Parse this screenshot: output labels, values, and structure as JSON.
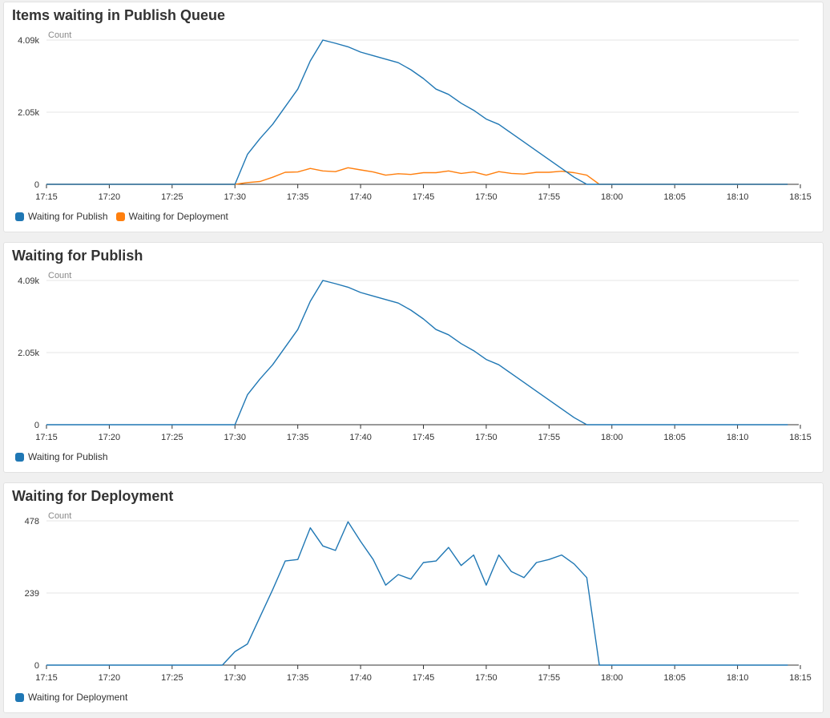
{
  "chart_data": [
    {
      "type": "line",
      "title": "Items waiting in Publish Queue",
      "ylabel": "Count",
      "x": [
        "17:15",
        "17:30",
        "17:31",
        "17:32",
        "17:33",
        "17:34",
        "17:35",
        "17:36",
        "17:37",
        "17:38",
        "17:39",
        "17:40",
        "17:41",
        "17:42",
        "17:43",
        "17:44",
        "17:45",
        "17:46",
        "17:47",
        "17:48",
        "17:49",
        "17:50",
        "17:51",
        "17:52",
        "17:53",
        "17:54",
        "17:55",
        "17:56",
        "17:57",
        "17:58",
        "17:59",
        "18:00",
        "18:14"
      ],
      "x_ticks": [
        "17:15",
        "17:20",
        "17:25",
        "17:30",
        "17:35",
        "17:40",
        "17:45",
        "17:50",
        "17:55",
        "18:00",
        "18:05",
        "18:10",
        "18:15"
      ],
      "y_ticks": [
        "0",
        "2.05k",
        "4.09k"
      ],
      "ylim": [
        0,
        4090
      ],
      "grid": true,
      "legend_position": "bottom-left",
      "series": [
        {
          "name": "Waiting for Publish",
          "color": "#1f77b4",
          "values": [
            0,
            0,
            850,
            1300,
            1700,
            2200,
            2700,
            3500,
            4090,
            4000,
            3900,
            3750,
            3650,
            3550,
            3450,
            3250,
            3000,
            2700,
            2550,
            2300,
            2100,
            1850,
            1700,
            1450,
            1200,
            950,
            700,
            450,
            200,
            0,
            0,
            0,
            0
          ]
        },
        {
          "name": "Waiting for Deployment",
          "color": "#ff7f0e",
          "values": [
            0,
            0,
            50,
            80,
            200,
            340,
            350,
            450,
            380,
            360,
            470,
            410,
            350,
            260,
            300,
            280,
            330,
            330,
            380,
            310,
            350,
            260,
            360,
            310,
            290,
            340,
            340,
            370,
            330,
            260,
            0,
            0,
            0
          ]
        }
      ]
    },
    {
      "type": "line",
      "title": "Waiting for Publish",
      "ylabel": "Count",
      "x": [
        "17:15",
        "17:30",
        "17:31",
        "17:32",
        "17:33",
        "17:34",
        "17:35",
        "17:36",
        "17:37",
        "17:38",
        "17:39",
        "17:40",
        "17:41",
        "17:42",
        "17:43",
        "17:44",
        "17:45",
        "17:46",
        "17:47",
        "17:48",
        "17:49",
        "17:50",
        "17:51",
        "17:52",
        "17:53",
        "17:54",
        "17:55",
        "17:56",
        "17:57",
        "17:58",
        "17:59",
        "18:00",
        "18:14"
      ],
      "x_ticks": [
        "17:15",
        "17:20",
        "17:25",
        "17:30",
        "17:35",
        "17:40",
        "17:45",
        "17:50",
        "17:55",
        "18:00",
        "18:05",
        "18:10",
        "18:15"
      ],
      "y_ticks": [
        "0",
        "2.05k",
        "4.09k"
      ],
      "ylim": [
        0,
        4090
      ],
      "grid": true,
      "legend_position": "bottom-left",
      "series": [
        {
          "name": "Waiting for Publish",
          "color": "#1f77b4",
          "values": [
            0,
            0,
            850,
            1300,
            1700,
            2200,
            2700,
            3500,
            4090,
            4000,
            3900,
            3750,
            3650,
            3550,
            3450,
            3250,
            3000,
            2700,
            2550,
            2300,
            2100,
            1850,
            1700,
            1450,
            1200,
            950,
            700,
            450,
            200,
            0,
            0,
            0,
            0
          ]
        }
      ]
    },
    {
      "type": "line",
      "title": "Waiting for Deployment",
      "ylabel": "Count",
      "x": [
        "17:15",
        "17:29",
        "17:30",
        "17:31",
        "17:32",
        "17:33",
        "17:34",
        "17:35",
        "17:36",
        "17:37",
        "17:38",
        "17:39",
        "17:40",
        "17:41",
        "17:42",
        "17:43",
        "17:44",
        "17:45",
        "17:46",
        "17:47",
        "17:48",
        "17:49",
        "17:50",
        "17:51",
        "17:52",
        "17:53",
        "17:54",
        "17:55",
        "17:56",
        "17:57",
        "17:58",
        "17:59",
        "18:14"
      ],
      "x_ticks": [
        "17:15",
        "17:20",
        "17:25",
        "17:30",
        "17:35",
        "17:40",
        "17:45",
        "17:50",
        "17:55",
        "18:00",
        "18:05",
        "18:10",
        "18:15"
      ],
      "y_ticks": [
        "0",
        "239",
        "478"
      ],
      "ylim": [
        0,
        478
      ],
      "grid": true,
      "legend_position": "bottom-left",
      "series": [
        {
          "name": "Waiting for Deployment",
          "color": "#1f77b4",
          "values": [
            0,
            0,
            45,
            70,
            160,
            250,
            345,
            350,
            455,
            395,
            380,
            475,
            410,
            350,
            265,
            300,
            285,
            340,
            345,
            390,
            330,
            365,
            265,
            365,
            310,
            290,
            340,
            350,
            365,
            335,
            290,
            0,
            0
          ]
        }
      ]
    }
  ]
}
